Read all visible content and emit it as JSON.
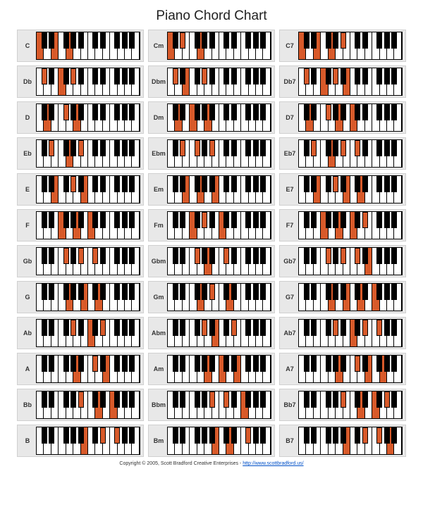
{
  "title": "Piano Chord Chart",
  "footer_prefix": "Copyright © 2005, Scott Bradford Creative Enterprises - ",
  "footer_link_text": "http://www.scottbradford.us/",
  "colors": {
    "highlight": "#d85a2a",
    "white_key": "#ffffff",
    "black_key": "#000000",
    "cell_bg": "#e8e8e8",
    "border": "#000000"
  },
  "keyboard": {
    "white_keys_count": 14,
    "black_key_positions_pct": [
      4.5,
      11.8,
      25.8,
      33.0,
      40.2,
      54.2,
      61.4,
      75.4,
      82.6,
      89.8
    ],
    "black_key_names": [
      "Db",
      "Eb",
      "Gb",
      "Ab",
      "Bb",
      "Db2",
      "Eb2",
      "Gb2",
      "Ab2",
      "Bb2"
    ],
    "white_key_names": [
      "C",
      "D",
      "E",
      "F",
      "G",
      "A",
      "B",
      "C2",
      "D2",
      "E2",
      "F2",
      "G2",
      "A2",
      "B2"
    ]
  },
  "chords": [
    {
      "row": 0,
      "col": 0,
      "label": "C",
      "white": [
        "C",
        "E",
        "G"
      ],
      "black": []
    },
    {
      "row": 0,
      "col": 1,
      "label": "Cm",
      "white": [
        "C",
        "G"
      ],
      "black": [
        "Eb"
      ]
    },
    {
      "row": 0,
      "col": 2,
      "label": "C7",
      "white": [
        "C",
        "E",
        "G"
      ],
      "black": [
        "Bb"
      ]
    },
    {
      "row": 1,
      "col": 0,
      "label": "Db",
      "white": [
        "F"
      ],
      "black": [
        "Db",
        "Ab"
      ]
    },
    {
      "row": 1,
      "col": 1,
      "label": "Dbm",
      "white": [
        "E"
      ],
      "black": [
        "Db",
        "Ab"
      ]
    },
    {
      "row": 1,
      "col": 2,
      "label": "Db7",
      "white": [
        "F",
        "B"
      ],
      "black": [
        "Db",
        "Ab"
      ]
    },
    {
      "row": 2,
      "col": 0,
      "label": "D",
      "white": [
        "D",
        "A"
      ],
      "black": [
        "Gb"
      ]
    },
    {
      "row": 2,
      "col": 1,
      "label": "Dm",
      "white": [
        "D",
        "F",
        "A"
      ],
      "black": []
    },
    {
      "row": 2,
      "col": 2,
      "label": "D7",
      "white": [
        "D",
        "A",
        "C2"
      ],
      "black": [
        "Gb"
      ]
    },
    {
      "row": 3,
      "col": 0,
      "label": "Eb",
      "white": [
        "G"
      ],
      "black": [
        "Eb",
        "Bb"
      ]
    },
    {
      "row": 3,
      "col": 1,
      "label": "Ebm",
      "white": [],
      "black": [
        "Eb",
        "Gb",
        "Bb"
      ]
    },
    {
      "row": 3,
      "col": 2,
      "label": "Eb7",
      "white": [
        "G"
      ],
      "black": [
        "Eb",
        "Bb",
        "Db2"
      ]
    },
    {
      "row": 4,
      "col": 0,
      "label": "E",
      "white": [
        "E",
        "B"
      ],
      "black": [
        "Ab"
      ]
    },
    {
      "row": 4,
      "col": 1,
      "label": "Em",
      "white": [
        "E",
        "G",
        "B"
      ],
      "black": []
    },
    {
      "row": 4,
      "col": 2,
      "label": "E7",
      "white": [
        "E",
        "B",
        "D2"
      ],
      "black": [
        "Ab"
      ]
    },
    {
      "row": 5,
      "col": 0,
      "label": "F",
      "white": [
        "F",
        "A",
        "C2"
      ],
      "black": []
    },
    {
      "row": 5,
      "col": 1,
      "label": "Fm",
      "white": [
        "F",
        "C2"
      ],
      "black": [
        "Ab"
      ]
    },
    {
      "row": 5,
      "col": 2,
      "label": "F7",
      "white": [
        "F",
        "A",
        "C2"
      ],
      "black": [
        "Eb2"
      ]
    },
    {
      "row": 6,
      "col": 0,
      "label": "Gb",
      "white": [],
      "black": [
        "Gb",
        "Bb",
        "Db2"
      ]
    },
    {
      "row": 6,
      "col": 1,
      "label": "Gbm",
      "white": [
        "A"
      ],
      "black": [
        "Gb",
        "Db2"
      ]
    },
    {
      "row": 6,
      "col": 2,
      "label": "Gb7",
      "white": [
        "E2"
      ],
      "black": [
        "Gb",
        "Bb",
        "Db2"
      ]
    },
    {
      "row": 7,
      "col": 0,
      "label": "G",
      "white": [
        "G",
        "B",
        "D2"
      ],
      "black": []
    },
    {
      "row": 7,
      "col": 1,
      "label": "Gm",
      "white": [
        "G",
        "D2"
      ],
      "black": [
        "Bb"
      ]
    },
    {
      "row": 7,
      "col": 2,
      "label": "G7",
      "white": [
        "G",
        "B",
        "D2",
        "F2"
      ],
      "black": []
    },
    {
      "row": 8,
      "col": 0,
      "label": "Ab",
      "white": [
        "C2"
      ],
      "black": [
        "Ab",
        "Eb2"
      ]
    },
    {
      "row": 8,
      "col": 1,
      "label": "Abm",
      "white": [
        "B"
      ],
      "black": [
        "Ab",
        "Eb2"
      ]
    },
    {
      "row": 8,
      "col": 2,
      "label": "Ab7",
      "white": [
        "C2"
      ],
      "black": [
        "Ab",
        "Eb2",
        "Gb2"
      ]
    },
    {
      "row": 9,
      "col": 0,
      "label": "A",
      "white": [
        "A",
        "E2"
      ],
      "black": [
        "Db2"
      ]
    },
    {
      "row": 9,
      "col": 1,
      "label": "Am",
      "white": [
        "A",
        "C2",
        "E2"
      ],
      "black": []
    },
    {
      "row": 9,
      "col": 2,
      "label": "A7",
      "white": [
        "A",
        "E2",
        "G2"
      ],
      "black": [
        "Db2"
      ]
    },
    {
      "row": 10,
      "col": 0,
      "label": "Bb",
      "white": [
        "D2",
        "F2"
      ],
      "black": [
        "Bb"
      ]
    },
    {
      "row": 10,
      "col": 1,
      "label": "Bbm",
      "white": [
        "F2"
      ],
      "black": [
        "Bb",
        "Db2"
      ]
    },
    {
      "row": 10,
      "col": 2,
      "label": "Bb7",
      "white": [
        "D2",
        "F2"
      ],
      "black": [
        "Bb",
        "Ab2"
      ]
    },
    {
      "row": 11,
      "col": 0,
      "label": "B",
      "white": [
        "B"
      ],
      "black": [
        "Eb2",
        "Gb2"
      ]
    },
    {
      "row": 11,
      "col": 1,
      "label": "Bm",
      "white": [
        "B",
        "D2"
      ],
      "black": [
        "Gb2"
      ]
    },
    {
      "row": 11,
      "col": 2,
      "label": "B7",
      "white": [
        "B",
        "A2"
      ],
      "black": [
        "Eb2",
        "Gb2"
      ]
    }
  ]
}
